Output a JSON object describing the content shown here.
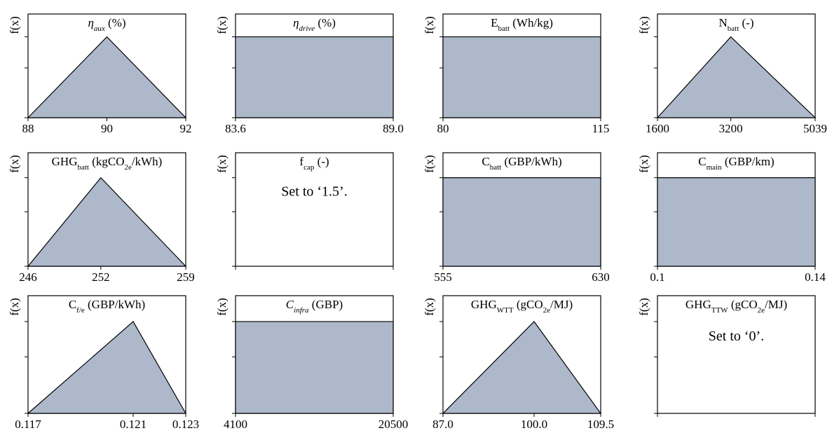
{
  "y_axis_label": "f(x)",
  "chart_data": [
    {
      "type": "area",
      "shape": "triangular",
      "title_main": "η",
      "title_sub": "aux",
      "title_suffix": " (%)",
      "title_italic": true,
      "x": [
        88,
        90,
        92
      ],
      "y": [
        0,
        1,
        0
      ],
      "xticks": [
        "88",
        "90",
        "92"
      ]
    },
    {
      "type": "area",
      "shape": "uniform",
      "title_main": "η",
      "title_sub": "drive",
      "title_suffix": " (%)",
      "title_italic": true,
      "x": [
        83.6,
        89.0
      ],
      "y": [
        1,
        1
      ],
      "xticks": [
        "83.6",
        "89.0"
      ]
    },
    {
      "type": "area",
      "shape": "uniform",
      "title_main": "E",
      "title_sub": "batt",
      "title_suffix": " (Wh/kg)",
      "title_italic": false,
      "x": [
        80,
        115
      ],
      "y": [
        1,
        1
      ],
      "xticks": [
        "80",
        "115"
      ]
    },
    {
      "type": "area",
      "shape": "triangular",
      "title_main": "N",
      "title_sub": "batt",
      "title_suffix": " (-)",
      "title_italic": false,
      "x": [
        1600,
        3200,
        5039
      ],
      "y": [
        0,
        1,
        0
      ],
      "xticks": [
        "1600",
        "3200",
        "5039"
      ]
    },
    {
      "type": "area",
      "shape": "triangular",
      "title_main": "GHG",
      "title_sub": "batt",
      "title_suffix": " (kgCO",
      "title_sub2": "2e",
      "title_suffix2": "/kWh)",
      "title_italic": false,
      "x": [
        246,
        252,
        259
      ],
      "y": [
        0,
        1,
        0
      ],
      "xticks": [
        "246",
        "252",
        "259"
      ]
    },
    {
      "type": "area",
      "shape": "fixed",
      "title_main": "f",
      "title_sub": "cap",
      "title_suffix": " (-)",
      "title_italic": false,
      "note": "Set to ‘1.5’.",
      "xticks": []
    },
    {
      "type": "area",
      "shape": "uniform",
      "title_main": "C",
      "title_sub": "batt",
      "title_suffix": " (GBP/kWh)",
      "title_italic": false,
      "x": [
        555,
        630
      ],
      "y": [
        1,
        1
      ],
      "xticks": [
        "555",
        "630"
      ]
    },
    {
      "type": "area",
      "shape": "uniform",
      "title_main": "C",
      "title_sub": "main",
      "title_suffix": " (GBP/km)",
      "title_italic": false,
      "x": [
        0.1,
        0.14
      ],
      "y": [
        1,
        1
      ],
      "xticks": [
        "0.1",
        "0.14"
      ]
    },
    {
      "type": "area",
      "shape": "triangular",
      "title_main": "C",
      "title_sub": "f/e",
      "title_suffix": " (GBP/kWh)",
      "title_italic": false,
      "x": [
        0.117,
        0.121,
        0.123
      ],
      "y": [
        0,
        1,
        0
      ],
      "xticks": [
        "0.117",
        "0.121",
        "0.123"
      ]
    },
    {
      "type": "area",
      "shape": "uniform",
      "title_main": "C",
      "title_sub": "infra",
      "title_suffix": " (GBP)",
      "title_italic": true,
      "x": [
        4100,
        20500
      ],
      "y": [
        1,
        1
      ],
      "xticks": [
        "4100",
        "20500"
      ]
    },
    {
      "type": "area",
      "shape": "triangular",
      "title_main": "GHG",
      "title_sub": "WTT",
      "title_suffix": " (gCO",
      "title_sub2": "2e",
      "title_suffix2": "/MJ)",
      "title_italic": false,
      "x": [
        87.0,
        100.0,
        109.5
      ],
      "y": [
        0,
        1,
        0
      ],
      "xticks": [
        "87.0",
        "100.0",
        "109.5"
      ]
    },
    {
      "type": "area",
      "shape": "fixed",
      "title_main": "GHG",
      "title_sub": "TTW",
      "title_suffix": " (gCO",
      "title_sub2": "2e",
      "title_suffix2": "/MJ)",
      "title_italic": false,
      "note": "Set to ‘0’.",
      "xticks": []
    }
  ]
}
